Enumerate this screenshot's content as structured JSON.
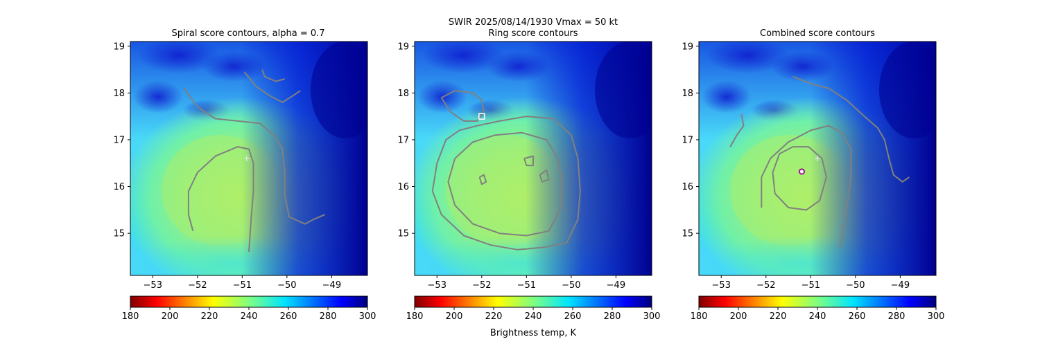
{
  "figure": {
    "suptitle": "SWIR  2025/08/14/1930    Vmax = 50 kt",
    "colorbar_label": "Brightness temp, K"
  },
  "colors": {
    "contour": "#808080",
    "marker_cross": "#e6e6e6",
    "marker_square": "#ffffff",
    "marker_ring": "#a0109a"
  },
  "chart_data": [
    {
      "type": "heatmap",
      "title": "Spiral score contours, alpha =  0.7",
      "xlim": [
        -53.5,
        -48.2
      ],
      "ylim": [
        14.1,
        19.1
      ],
      "xticks": [
        -53,
        -52,
        -51,
        -50,
        -49
      ],
      "yticks": [
        15,
        16,
        17,
        18,
        19
      ],
      "colorbar": {
        "colormap": "jet_r",
        "range": [
          180,
          300
        ],
        "ticks": [
          180,
          200,
          220,
          240,
          260,
          280,
          300
        ]
      },
      "markers": [
        {
          "shape": "cross",
          "lon": -50.9,
          "lat": 16.6
        }
      ],
      "contours": [
        [
          [
            -52.1,
            15.05
          ],
          [
            -52.2,
            15.4
          ],
          [
            -52.2,
            15.9
          ],
          [
            -52.0,
            16.3
          ],
          [
            -51.6,
            16.65
          ],
          [
            -51.1,
            16.85
          ],
          [
            -50.85,
            16.8
          ],
          [
            -50.75,
            16.5
          ],
          [
            -50.75,
            15.9
          ],
          [
            -50.8,
            15.3
          ],
          [
            -50.85,
            14.6
          ]
        ],
        [
          [
            -52.3,
            18.1
          ],
          [
            -52.0,
            17.7
          ],
          [
            -51.6,
            17.45
          ],
          [
            -51.1,
            17.4
          ],
          [
            -50.6,
            17.35
          ],
          [
            -50.3,
            17.1
          ],
          [
            -50.1,
            16.8
          ],
          [
            -50.05,
            16.3
          ],
          [
            -50.05,
            15.8
          ],
          [
            -49.95,
            15.35
          ],
          [
            -49.6,
            15.2
          ],
          [
            -49.4,
            15.3
          ],
          [
            -49.15,
            15.4
          ]
        ],
        [
          [
            -50.95,
            18.45
          ],
          [
            -50.7,
            18.15
          ],
          [
            -50.4,
            17.95
          ],
          [
            -50.1,
            17.8
          ],
          [
            -49.85,
            17.95
          ],
          [
            -49.7,
            18.05
          ]
        ],
        [
          [
            -50.55,
            18.5
          ],
          [
            -50.5,
            18.35
          ],
          [
            -50.25,
            18.25
          ],
          [
            -50.05,
            18.3
          ]
        ]
      ]
    },
    {
      "type": "heatmap",
      "title": "Ring score contours",
      "xlim": [
        -53.5,
        -48.2
      ],
      "ylim": [
        14.1,
        19.1
      ],
      "xticks": [
        -53,
        -52,
        -51,
        -50,
        -49
      ],
      "yticks": [
        15,
        16,
        17,
        18,
        19
      ],
      "colorbar": {
        "colormap": "jet_r",
        "range": [
          180,
          300
        ],
        "ticks": [
          180,
          200,
          220,
          240,
          260,
          280,
          300
        ]
      },
      "markers": [
        {
          "shape": "square",
          "lon": -52.0,
          "lat": 17.5
        }
      ],
      "contours": [
        [
          [
            -52.8,
            17.0
          ],
          [
            -53.0,
            16.5
          ],
          [
            -53.1,
            15.9
          ],
          [
            -52.9,
            15.4
          ],
          [
            -52.4,
            14.95
          ],
          [
            -51.8,
            14.75
          ],
          [
            -51.2,
            14.65
          ],
          [
            -50.6,
            14.7
          ],
          [
            -50.1,
            14.8
          ],
          [
            -49.85,
            15.3
          ],
          [
            -49.8,
            15.9
          ],
          [
            -49.85,
            16.6
          ],
          [
            -50.0,
            17.1
          ],
          [
            -50.4,
            17.45
          ],
          [
            -51.0,
            17.5
          ],
          [
            -51.6,
            17.4
          ],
          [
            -52.1,
            17.3
          ],
          [
            -52.5,
            17.2
          ],
          [
            -52.8,
            17.0
          ]
        ],
        [
          [
            -52.6,
            16.6
          ],
          [
            -52.75,
            16.1
          ],
          [
            -52.6,
            15.6
          ],
          [
            -52.2,
            15.2
          ],
          [
            -51.6,
            15.0
          ],
          [
            -51.0,
            14.95
          ],
          [
            -50.5,
            15.05
          ],
          [
            -50.25,
            15.5
          ],
          [
            -50.2,
            16.1
          ],
          [
            -50.3,
            16.6
          ],
          [
            -50.55,
            17.0
          ],
          [
            -51.1,
            17.15
          ],
          [
            -51.7,
            17.1
          ],
          [
            -52.2,
            16.95
          ],
          [
            -52.6,
            16.6
          ]
        ],
        [
          [
            -52.7,
            17.6
          ],
          [
            -52.9,
            17.9
          ],
          [
            -52.6,
            18.05
          ],
          [
            -52.2,
            18.0
          ],
          [
            -52.0,
            17.85
          ],
          [
            -51.95,
            17.6
          ],
          [
            -52.1,
            17.4
          ],
          [
            -52.4,
            17.4
          ],
          [
            -52.7,
            17.6
          ]
        ],
        [
          [
            -51.05,
            16.6
          ],
          [
            -50.85,
            16.65
          ],
          [
            -50.85,
            16.45
          ],
          [
            -51.0,
            16.45
          ],
          [
            -51.05,
            16.6
          ]
        ],
        [
          [
            -50.7,
            16.25
          ],
          [
            -50.55,
            16.35
          ],
          [
            -50.5,
            16.15
          ],
          [
            -50.65,
            16.1
          ],
          [
            -50.7,
            16.25
          ]
        ],
        [
          [
            -52.05,
            16.2
          ],
          [
            -51.95,
            16.25
          ],
          [
            -51.9,
            16.1
          ],
          [
            -52.0,
            16.05
          ],
          [
            -52.05,
            16.2
          ]
        ]
      ]
    },
    {
      "type": "heatmap",
      "title": "Combined score contours",
      "xlim": [
        -53.5,
        -48.2
      ],
      "ylim": [
        14.1,
        19.1
      ],
      "xticks": [
        -53,
        -52,
        -51,
        -50,
        -49
      ],
      "yticks": [
        15,
        16,
        17,
        18,
        19
      ],
      "colorbar": {
        "colormap": "jet_r",
        "range": [
          180,
          300
        ],
        "ticks": [
          180,
          200,
          220,
          240,
          260,
          280,
          300
        ]
      },
      "markers": [
        {
          "shape": "cross",
          "lon": -50.85,
          "lat": 16.6
        },
        {
          "shape": "ring",
          "lon": -51.2,
          "lat": 16.32
        }
      ],
      "contours": [
        [
          [
            -51.4,
            16.85
          ],
          [
            -51.7,
            16.7
          ],
          [
            -51.85,
            16.3
          ],
          [
            -51.8,
            15.85
          ],
          [
            -51.5,
            15.55
          ],
          [
            -51.1,
            15.5
          ],
          [
            -50.8,
            15.7
          ],
          [
            -50.65,
            16.2
          ],
          [
            -50.75,
            16.6
          ],
          [
            -51.05,
            16.85
          ],
          [
            -51.4,
            16.85
          ]
        ],
        [
          [
            -52.1,
            15.55
          ],
          [
            -52.1,
            16.2
          ],
          [
            -51.9,
            16.6
          ],
          [
            -51.5,
            16.95
          ],
          [
            -51.0,
            17.2
          ],
          [
            -50.6,
            17.3
          ],
          [
            -50.3,
            17.15
          ],
          [
            -50.1,
            16.8
          ],
          [
            -50.1,
            16.2
          ],
          [
            -50.2,
            15.5
          ],
          [
            -50.35,
            14.7
          ]
        ],
        [
          [
            -51.4,
            18.35
          ],
          [
            -51.0,
            18.2
          ],
          [
            -50.6,
            18.1
          ],
          [
            -50.2,
            17.85
          ],
          [
            -49.8,
            17.5
          ],
          [
            -49.5,
            17.25
          ],
          [
            -49.35,
            17.0
          ],
          [
            -49.25,
            16.6
          ],
          [
            -49.15,
            16.25
          ],
          [
            -48.95,
            16.1
          ],
          [
            -48.8,
            16.2
          ]
        ],
        [
          [
            -52.55,
            17.55
          ],
          [
            -52.5,
            17.3
          ],
          [
            -52.65,
            17.1
          ],
          [
            -52.8,
            16.85
          ]
        ]
      ]
    }
  ]
}
